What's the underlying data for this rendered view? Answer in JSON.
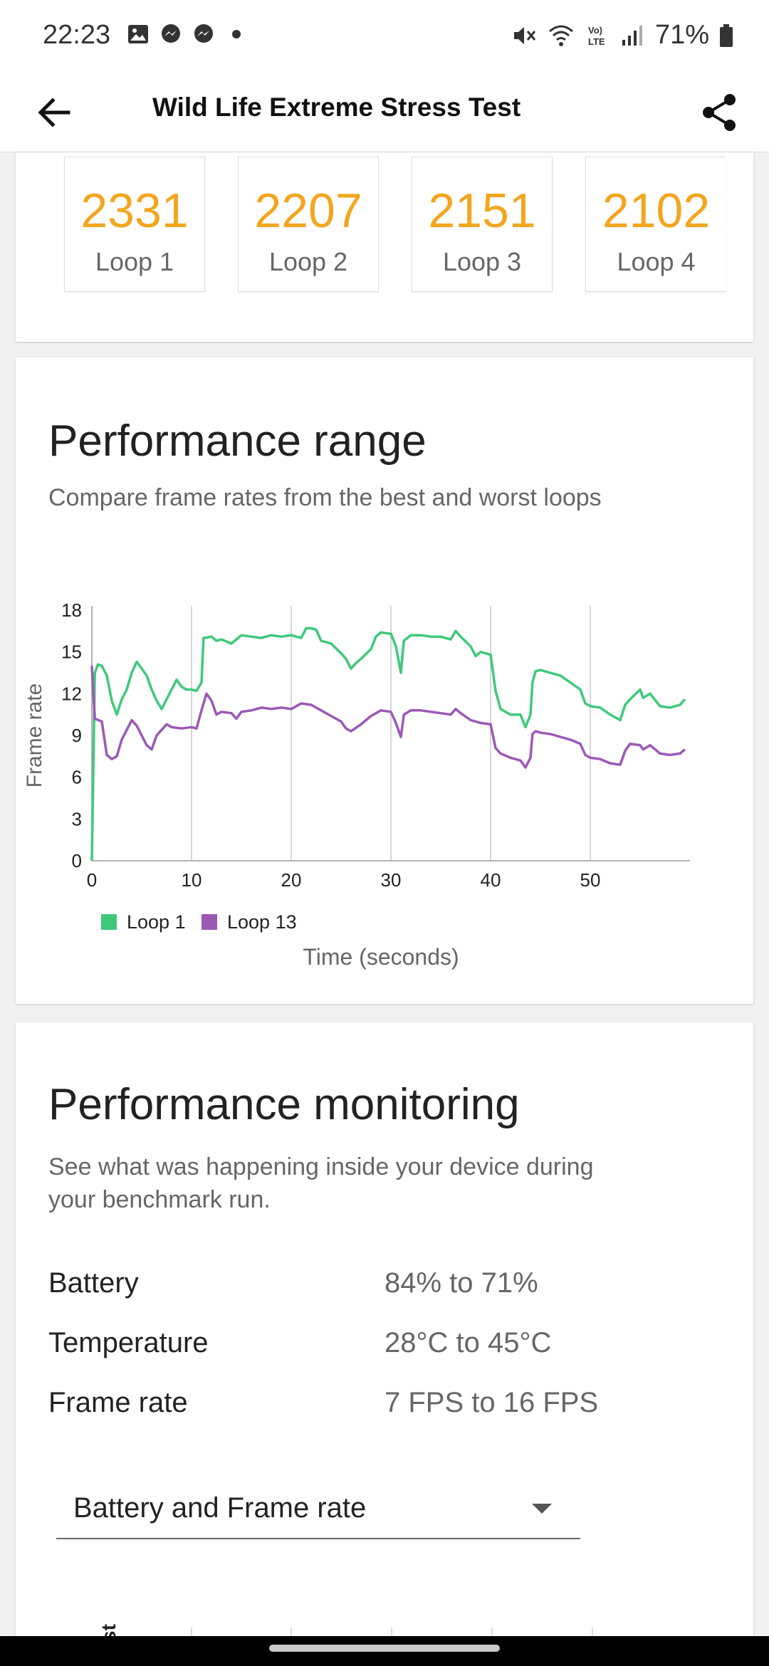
{
  "status_bar": {
    "time": "22:23",
    "battery_percent": "71%",
    "left_icons": [
      "gallery-icon",
      "messenger-icon",
      "messenger-icon",
      "dot-icon"
    ],
    "right_icons": [
      "mute-icon",
      "wifi-icon",
      "volte-icon",
      "signal-icon",
      "battery-icon"
    ]
  },
  "app_bar": {
    "title": "Wild Life Extreme Stress Test"
  },
  "loops": [
    {
      "score": "2331",
      "label": "Loop 1"
    },
    {
      "score": "2207",
      "label": "Loop 2"
    },
    {
      "score": "2151",
      "label": "Loop 3"
    },
    {
      "score": "2102",
      "label": "Loop 4"
    }
  ],
  "range": {
    "title": "Performance range",
    "subtitle": "Compare frame rates from the best and worst loops"
  },
  "chart_data": {
    "type": "line",
    "xlabel": "Time (seconds)",
    "ylabel": "Frame rate",
    "xlim": [
      0,
      60
    ],
    "ylim": [
      0,
      18
    ],
    "x_ticks": [
      "0",
      "10",
      "20",
      "30",
      "40",
      "50"
    ],
    "y_ticks": [
      "0",
      "3",
      "6",
      "9",
      "12",
      "15",
      "18"
    ],
    "grid": "vertical",
    "legend": "bottom-left",
    "series": [
      {
        "name": "Loop 1",
        "color": "#3ec97a",
        "points": [
          [
            0,
            0
          ],
          [
            0.3,
            13.5
          ],
          [
            0.6,
            14.1
          ],
          [
            1,
            14
          ],
          [
            1.5,
            13.3
          ],
          [
            2,
            11.5
          ],
          [
            2.5,
            10.5
          ],
          [
            3,
            11.6
          ],
          [
            3.5,
            12.3
          ],
          [
            4,
            13.5
          ],
          [
            4.5,
            14.3
          ],
          [
            5,
            13.8
          ],
          [
            5.5,
            13.3
          ],
          [
            6,
            12.3
          ],
          [
            6.5,
            11.5
          ],
          [
            7,
            10.9
          ],
          [
            7.5,
            11.6
          ],
          [
            8,
            12.3
          ],
          [
            8.5,
            13
          ],
          [
            9,
            12.5
          ],
          [
            9.5,
            12.3
          ],
          [
            10,
            12.3
          ],
          [
            10.5,
            12.2
          ],
          [
            11,
            12.8
          ],
          [
            11.2,
            16
          ],
          [
            12,
            16.1
          ],
          [
            12.5,
            15.8
          ],
          [
            13,
            15.9
          ],
          [
            14,
            15.6
          ],
          [
            14.5,
            15.9
          ],
          [
            15,
            16.2
          ],
          [
            16,
            16.1
          ],
          [
            17,
            16.0
          ],
          [
            18,
            16.2
          ],
          [
            19,
            16.1
          ],
          [
            20,
            16.2
          ],
          [
            21,
            16.0
          ],
          [
            21.5,
            16.7
          ],
          [
            22,
            16.7
          ],
          [
            22.5,
            16.6
          ],
          [
            23,
            15.8
          ],
          [
            24,
            15.6
          ],
          [
            25,
            14.9
          ],
          [
            25.5,
            14.5
          ],
          [
            26,
            13.8
          ],
          [
            26.5,
            14.2
          ],
          [
            27,
            14.5
          ],
          [
            28,
            15.2
          ],
          [
            28.5,
            16.1
          ],
          [
            29,
            16.4
          ],
          [
            30,
            16.3
          ],
          [
            30.5,
            15.4
          ],
          [
            31,
            13.5
          ],
          [
            31.3,
            15.8
          ],
          [
            32,
            16.2
          ],
          [
            33,
            16.2
          ],
          [
            34,
            16.1
          ],
          [
            35,
            16.1
          ],
          [
            36,
            15.9
          ],
          [
            36.5,
            16.5
          ],
          [
            37,
            16.1
          ],
          [
            38,
            15.4
          ],
          [
            38.5,
            14.7
          ],
          [
            39,
            15.0
          ],
          [
            40,
            14.8
          ],
          [
            40.5,
            12.2
          ],
          [
            41,
            10.9
          ],
          [
            42,
            10.5
          ],
          [
            43,
            10.5
          ],
          [
            43.5,
            9.6
          ],
          [
            44,
            10.5
          ],
          [
            44.2,
            12.8
          ],
          [
            44.5,
            13.6
          ],
          [
            45,
            13.7
          ],
          [
            46,
            13.5
          ],
          [
            47,
            13.3
          ],
          [
            48,
            12.8
          ],
          [
            49,
            12.3
          ],
          [
            49.5,
            11.3
          ],
          [
            50,
            11.1
          ],
          [
            51,
            11.0
          ],
          [
            52,
            10.5
          ],
          [
            53,
            10.1
          ],
          [
            53.5,
            11.2
          ],
          [
            54,
            11.6
          ],
          [
            55,
            12.3
          ],
          [
            55.3,
            11.7
          ],
          [
            56,
            12.0
          ],
          [
            57,
            11.1
          ],
          [
            58,
            11.0
          ],
          [
            59,
            11.2
          ],
          [
            59.5,
            11.6
          ]
        ]
      },
      {
        "name": "Loop 13",
        "color": "#9b59b6",
        "points": [
          [
            0,
            14
          ],
          [
            0.3,
            10.2
          ],
          [
            1,
            10
          ],
          [
            1.5,
            7.6
          ],
          [
            2,
            7.3
          ],
          [
            2.5,
            7.5
          ],
          [
            3,
            8.7
          ],
          [
            3.5,
            9.4
          ],
          [
            4,
            10.1
          ],
          [
            4.5,
            9.7
          ],
          [
            5,
            9.0
          ],
          [
            5.5,
            8.3
          ],
          [
            6,
            8.0
          ],
          [
            6.5,
            9.0
          ],
          [
            7,
            9.4
          ],
          [
            7.5,
            9.8
          ],
          [
            8,
            9.6
          ],
          [
            9,
            9.5
          ],
          [
            10,
            9.6
          ],
          [
            10.5,
            9.5
          ],
          [
            11,
            10.8
          ],
          [
            11.5,
            12.0
          ],
          [
            12,
            11.5
          ],
          [
            12.5,
            10.5
          ],
          [
            13,
            10.7
          ],
          [
            14,
            10.6
          ],
          [
            14.5,
            10.2
          ],
          [
            15,
            10.7
          ],
          [
            16,
            10.8
          ],
          [
            17,
            11.0
          ],
          [
            18,
            10.9
          ],
          [
            19,
            11.0
          ],
          [
            20,
            10.9
          ],
          [
            21,
            11.3
          ],
          [
            22,
            11.2
          ],
          [
            23,
            10.8
          ],
          [
            24,
            10.4
          ],
          [
            25,
            10.0
          ],
          [
            25.5,
            9.5
          ],
          [
            26,
            9.3
          ],
          [
            27,
            9.8
          ],
          [
            28,
            10.4
          ],
          [
            29,
            10.8
          ],
          [
            30,
            10.7
          ],
          [
            30.5,
            9.9
          ],
          [
            31,
            8.9
          ],
          [
            31.3,
            10.5
          ],
          [
            32,
            10.8
          ],
          [
            33,
            10.8
          ],
          [
            34,
            10.7
          ],
          [
            35,
            10.6
          ],
          [
            36,
            10.5
          ],
          [
            36.5,
            10.9
          ],
          [
            37,
            10.6
          ],
          [
            38,
            10.1
          ],
          [
            39,
            9.9
          ],
          [
            40,
            9.8
          ],
          [
            40.5,
            8.1
          ],
          [
            41,
            7.7
          ],
          [
            42,
            7.4
          ],
          [
            43,
            7.2
          ],
          [
            43.5,
            6.7
          ],
          [
            44,
            7.4
          ],
          [
            44.2,
            9.1
          ],
          [
            44.5,
            9.3
          ],
          [
            45,
            9.2
          ],
          [
            46,
            9.1
          ],
          [
            47,
            8.9
          ],
          [
            48,
            8.7
          ],
          [
            49,
            8.4
          ],
          [
            49.5,
            7.6
          ],
          [
            50,
            7.4
          ],
          [
            51,
            7.3
          ],
          [
            52,
            7.0
          ],
          [
            53,
            6.9
          ],
          [
            53.5,
            7.9
          ],
          [
            54,
            8.4
          ],
          [
            55,
            8.3
          ],
          [
            55.3,
            8.0
          ],
          [
            56,
            8.3
          ],
          [
            57,
            7.7
          ],
          [
            58,
            7.6
          ],
          [
            59,
            7.7
          ],
          [
            59.5,
            8.0
          ]
        ]
      }
    ]
  },
  "monitoring": {
    "title": "Performance monitoring",
    "subtitle_line1": "See what was happening inside your device during",
    "subtitle_line2": "your benchmark run.",
    "rows": [
      {
        "label": "Battery",
        "value": "84% to 71%"
      },
      {
        "label": "Temperature",
        "value": "28°C to 45°C"
      },
      {
        "label": "Frame rate",
        "value": "7 FPS to 16 FPS"
      }
    ],
    "dropdown_value": "Battery and Frame rate",
    "partial_chart_label": "st"
  }
}
